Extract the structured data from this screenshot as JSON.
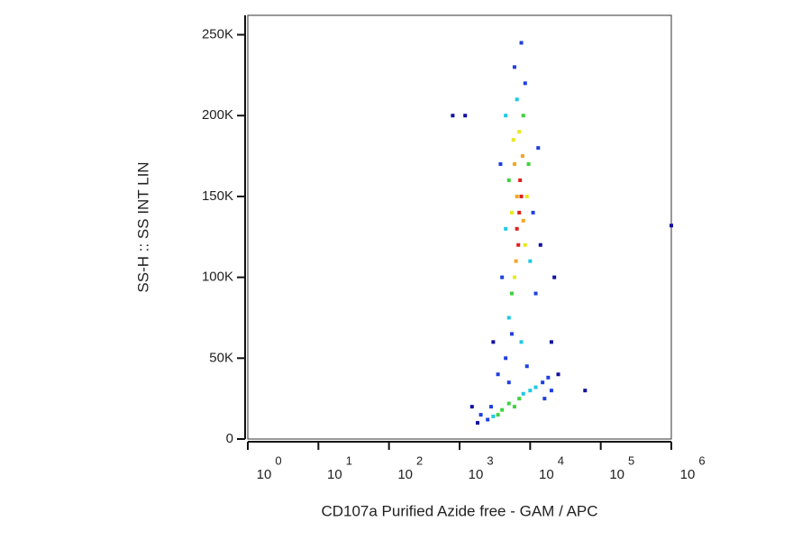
{
  "chart_data": {
    "type": "scatter",
    "x_label": "CD107a Purified Azide free - GAM / APC",
    "y_label": "SS-H :: SS INT LIN",
    "xscale": "log",
    "xlim": [
      1,
      1000000
    ],
    "xticks": [
      {
        "value": 1,
        "label": "10",
        "power": "0"
      },
      {
        "value": 10,
        "label": "10",
        "power": "1"
      },
      {
        "value": 100,
        "label": "10",
        "power": "2"
      },
      {
        "value": 1000,
        "label": "10",
        "power": "3"
      },
      {
        "value": 10000,
        "label": "10",
        "power": "4"
      },
      {
        "value": 100000,
        "label": "10",
        "power": "5"
      },
      {
        "value": 1000000,
        "label": "10",
        "power": "6"
      }
    ],
    "ylim": [
      0,
      262000
    ],
    "yticks": [
      0,
      {
        "value": 50000,
        "label": "50K"
      },
      {
        "value": 100000,
        "label": "100K"
      },
      {
        "value": 150000,
        "label": "150K"
      },
      {
        "value": 200000,
        "label": "200K"
      },
      {
        "value": 250000,
        "label": "250K"
      }
    ],
    "series": [
      {
        "color": "#e0201b",
        "x": [
          7000,
          7500,
          6500,
          7200,
          6800
        ],
        "y": [
          140000,
          150000,
          130000,
          160000,
          120000
        ]
      },
      {
        "color": "#f5a623",
        "x": [
          6000,
          8000,
          6300,
          7800,
          6500
        ],
        "y": [
          170000,
          135000,
          110000,
          175000,
          150000
        ]
      },
      {
        "color": "#e8e81e",
        "x": [
          5800,
          8500,
          6000,
          7000,
          5500,
          9000
        ],
        "y": [
          185000,
          120000,
          100000,
          190000,
          140000,
          150000
        ]
      },
      {
        "color": "#3fd23f",
        "x": [
          5000,
          9500,
          5500,
          8000,
          4000,
          5000,
          6000,
          7000,
          3500
        ],
        "y": [
          160000,
          170000,
          90000,
          200000,
          18000,
          22000,
          20000,
          25000,
          15000
        ]
      },
      {
        "color": "#1ec8e6",
        "x": [
          4500,
          10000,
          6500,
          5000,
          7500,
          3000,
          8000,
          10000,
          12000,
          4500
        ],
        "y": [
          130000,
          110000,
          210000,
          75000,
          60000,
          14000,
          28000,
          30000,
          32000,
          200000
        ]
      },
      {
        "color": "#1f3fe0",
        "x": [
          4000,
          11000,
          6000,
          7500,
          4500,
          9000,
          15000,
          20000,
          2500,
          2000,
          3500,
          12000,
          3800,
          13000,
          8500,
          5000,
          16000,
          2800,
          18000,
          5500
        ],
        "y": [
          100000,
          140000,
          230000,
          245000,
          50000,
          45000,
          35000,
          30000,
          12000,
          15000,
          40000,
          90000,
          170000,
          180000,
          220000,
          35000,
          25000,
          20000,
          38000,
          65000
        ]
      },
      {
        "color": "#1010a0",
        "x": [
          1500,
          1800,
          20000,
          25000,
          800,
          1200,
          60000,
          1000000,
          3000,
          14000,
          22000
        ],
        "y": [
          20000,
          10000,
          60000,
          40000,
          200000,
          200000,
          30000,
          132000,
          60000,
          120000,
          100000
        ]
      }
    ]
  }
}
